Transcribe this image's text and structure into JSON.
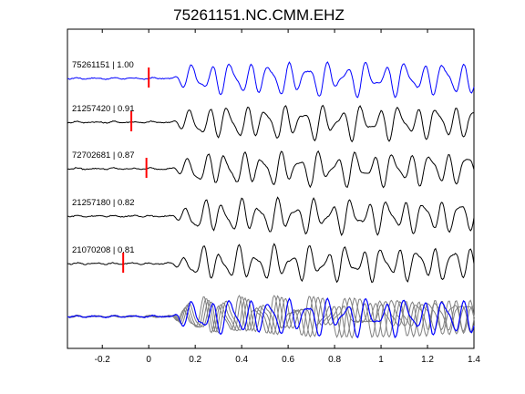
{
  "chart_data": {
    "type": "line",
    "title": "75261151.NC.CMM.EHZ",
    "xlabel": "",
    "ylabel": "",
    "xlim": [
      -0.35,
      1.4
    ],
    "xticks": [
      {
        "value": -0.2,
        "label": "-0.2"
      },
      {
        "value": 0,
        "label": "0"
      },
      {
        "value": 0.2,
        "label": "0.2"
      },
      {
        "value": 0.4,
        "label": "0.4"
      },
      {
        "value": 0.6,
        "label": "0.6"
      },
      {
        "value": 0.8,
        "label": "0.8"
      },
      {
        "value": 1,
        "label": "1"
      },
      {
        "value": 1.2,
        "label": "1.2"
      },
      {
        "value": 1.4,
        "label": "1.4"
      }
    ],
    "grid": false,
    "colors": {
      "reference": "#0000ff",
      "trace": "#000000",
      "overlay": "#808080",
      "pick": "#ff0000"
    },
    "traces": [
      {
        "label": "75261151 | 1.00",
        "color": "#0000ff",
        "pick": 0.0
      },
      {
        "label": "21257420 | 0.91",
        "color": "#000000",
        "pick": -0.075
      },
      {
        "label": "72702681 | 0.87",
        "color": "#000000",
        "pick": -0.01
      },
      {
        "label": "21257180 | 0.82",
        "color": "#000000",
        "pick": null
      },
      {
        "label": "21070208 | 0.81",
        "color": "#000000",
        "pick": -0.11
      }
    ],
    "stack": {
      "label": "",
      "reference_color": "#0000ff",
      "member_color": "#808080"
    }
  }
}
